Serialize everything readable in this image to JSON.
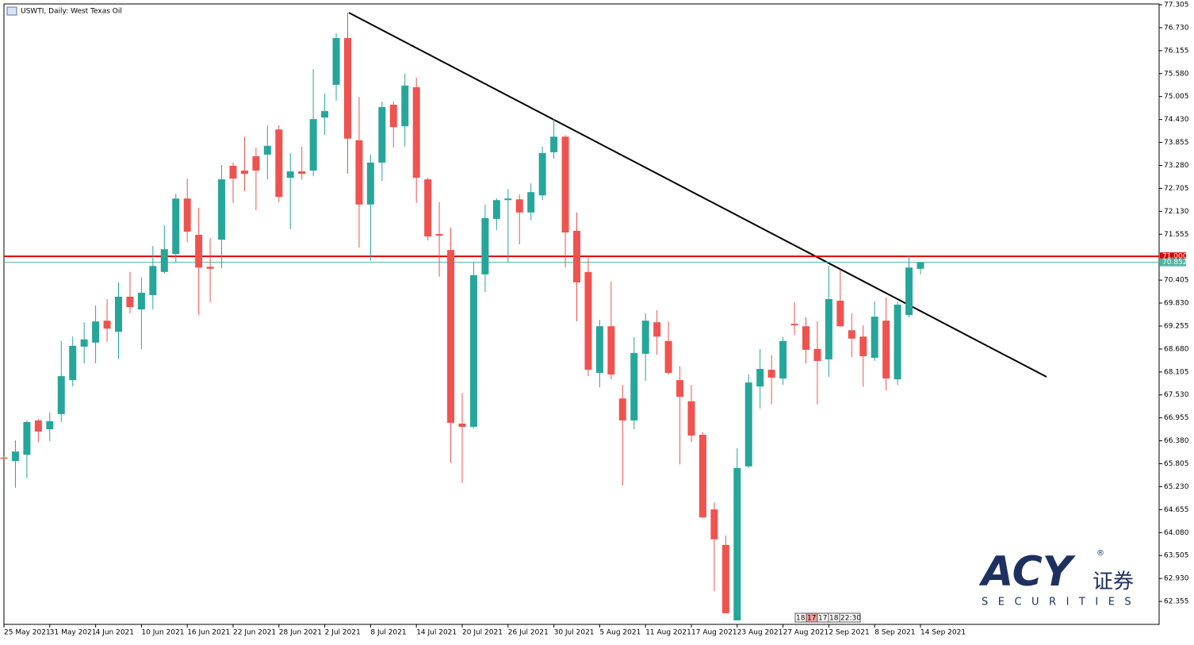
{
  "chart_data": {
    "type": "candlestick",
    "title": "USWTI, Daily:  West Texas Oil",
    "categories": [
      "25 May 2021",
      null,
      null,
      null,
      "31 May 2021",
      null,
      null,
      null,
      "4 Jun 2021",
      null,
      null,
      null,
      "10 Jun 2021",
      null,
      null,
      null,
      "16 Jun 2021",
      null,
      null,
      null,
      "22 Jun 2021",
      null,
      null,
      null,
      "28 Jun 2021",
      null,
      null,
      null,
      "2 Jul 2021",
      null,
      null,
      null,
      "8 Jul 2021",
      null,
      null,
      null,
      "14 Jul 2021",
      null,
      null,
      null,
      "20 Jul 2021",
      null,
      null,
      null,
      "26 Jul 2021",
      null,
      null,
      null,
      "30 Jul 2021",
      null,
      null,
      null,
      "5 Aug 2021",
      null,
      null,
      null,
      "11 Aug 2021",
      null,
      null,
      null,
      "17 Aug 2021",
      null,
      null,
      null,
      "23 Aug 2021",
      null,
      null,
      null,
      "27 Aug 2021",
      null,
      null,
      null,
      "2 Sep 2021",
      null,
      null,
      null,
      "8 Sep 2021",
      null,
      null,
      null,
      "14 Sep 2021"
    ],
    "open": [
      65.96,
      65.87,
      66.03,
      66.89,
      66.67,
      67.05,
      67.9,
      68.74,
      68.84,
      69.39,
      69.11,
      69.99,
      69.67,
      70.03,
      70.61,
      71.06,
      72.45,
      71.54,
      70.74,
      71.42,
      73.27,
      73.15,
      73.51,
      73.55,
      74.18,
      72.97,
      73.13,
      73.15,
      74.48,
      75.3,
      76.47,
      73.91,
      72.3,
      73.35,
      74.8,
      74.26,
      75.24,
      72.93,
      71.56,
      71.16,
      66.81,
      66.73,
      70.55,
      71.94,
      72.41,
      72.43,
      72.1,
      72.53,
      73.61,
      74.0,
      71.64,
      70.61,
      68.08,
      69.25,
      67.44,
      66.89,
      68.56,
      69.35,
      68.88,
      67.9,
      67.37,
      66.53,
      64.66,
      63.77,
      61.88,
      65.74,
      67.74,
      68.16,
      67.94,
      69.31,
      69.25,
      68.68,
      68.42,
      69.89,
      69.15,
      68.99,
      68.46,
      69.39,
      67.92,
      69.53,
      70.69
    ],
    "high": [
      65.98,
      66.39,
      66.89,
      66.93,
      67.09,
      68.88,
      68.99,
      69.35,
      69.77,
      69.93,
      70.35,
      70.61,
      70.47,
      71.26,
      71.78,
      72.57,
      72.95,
      72.22,
      71.46,
      73.29,
      73.35,
      74.0,
      73.73,
      74.28,
      74.28,
      73.59,
      73.75,
      75.69,
      75.08,
      76.59,
      77.11,
      75.0,
      73.55,
      74.88,
      74.88,
      75.58,
      75.48,
      72.97,
      72.36,
      71.72,
      67.58,
      70.86,
      72.3,
      72.45,
      72.69,
      72.55,
      72.83,
      73.75,
      74.44,
      74.04,
      72.1,
      70.96,
      69.41,
      70.37,
      67.78,
      68.98,
      69.57,
      69.65,
      69.37,
      68.24,
      67.78,
      66.59,
      64.84,
      64.01,
      66.19,
      68.04,
      68.68,
      68.52,
      68.98,
      69.85,
      69.47,
      69.37,
      70.76,
      70.67,
      69.57,
      69.27,
      69.87,
      69.97,
      69.87,
      71.02,
      70.86
    ],
    "low": [
      65.92,
      65.2,
      65.44,
      66.35,
      66.37,
      66.85,
      67.74,
      68.32,
      68.32,
      68.86,
      68.44,
      69.57,
      68.68,
      69.67,
      70.57,
      70.86,
      71.36,
      69.53,
      69.85,
      70.71,
      72.34,
      72.63,
      72.16,
      72.93,
      72.36,
      71.68,
      72.93,
      73.01,
      74.04,
      74.9,
      73.07,
      71.22,
      70.9,
      72.89,
      73.73,
      73.75,
      72.34,
      71.4,
      70.49,
      65.83,
      65.32,
      66.69,
      70.11,
      71.66,
      70.86,
      71.3,
      71.9,
      72.41,
      73.45,
      70.72,
      69.37,
      68.0,
      67.72,
      67.92,
      65.26,
      66.67,
      67.88,
      68.54,
      68.04,
      65.79,
      66.35,
      64.44,
      62.61,
      62.06,
      61.88,
      65.7,
      67.19,
      67.29,
      67.78,
      69.02,
      68.32,
      67.29,
      67.98,
      69.23,
      68.48,
      67.74,
      68.38,
      67.64,
      67.78,
      69.47,
      70.55
    ],
    "close": [
      65.94,
      66.11,
      66.85,
      66.61,
      66.87,
      68.0,
      68.76,
      68.92,
      69.37,
      69.19,
      69.99,
      69.73,
      70.09,
      70.76,
      71.18,
      72.45,
      71.62,
      70.72,
      70.69,
      72.93,
      72.95,
      73.07,
      73.15,
      73.77,
      72.49,
      73.13,
      73.07,
      74.44,
      74.64,
      76.47,
      73.95,
      72.3,
      73.35,
      74.74,
      74.24,
      75.28,
      72.97,
      71.5,
      71.52,
      66.83,
      66.73,
      70.53,
      71.96,
      72.41,
      72.45,
      72.1,
      72.61,
      73.59,
      74.0,
      71.6,
      70.35,
      68.16,
      69.25,
      68.04,
      66.89,
      68.58,
      69.39,
      68.99,
      68.08,
      67.48,
      66.51,
      64.46,
      63.91,
      62.06,
      65.7,
      67.84,
      68.18,
      67.96,
      68.88,
      69.27,
      68.66,
      68.38,
      69.93,
      69.25,
      68.94,
      68.5,
      69.49,
      67.94,
      69.79,
      70.72,
      70.85
    ],
    "up_color": "#26a69a",
    "down_color": "#ef5350",
    "ylim": [
      61.78,
      77.325
    ],
    "yticks": [
      77.305,
      {
        "value": 76.73,
        "label": "76.730"
      },
      76.155,
      {
        "value": 75.58,
        "label": "75.580"
      },
      75.005,
      {
        "value": 74.43,
        "label": "74.430"
      },
      73.855,
      {
        "value": 73.28,
        "label": "73.280"
      },
      72.705,
      {
        "value": 72.13,
        "label": "72.130"
      },
      71.555,
      70.405,
      {
        "value": 69.83,
        "label": "69.830"
      },
      69.255,
      {
        "value": 68.68,
        "label": "68.680"
      },
      68.105,
      {
        "value": 67.53,
        "label": "67.530"
      },
      66.955,
      {
        "value": 66.38,
        "label": "66.380"
      },
      65.805,
      {
        "value": 65.23,
        "label": "65.230"
      },
      64.655,
      {
        "value": 64.08,
        "label": "64.080"
      },
      63.505,
      {
        "value": 62.93,
        "label": "62.930"
      },
      62.355
    ],
    "price_lines": [
      {
        "value": 71,
        "label": "71.000",
        "color": "#e00000"
      },
      {
        "value": 70.852,
        "color": "#4fb3a3"
      }
    ]
  },
  "session_times": [
    "18:",
    "17:",
    "17:",
    "18:",
    "22:30"
  ],
  "logo": {
    "brand": "ACY",
    "mark": "®",
    "cn": "证券",
    "sub": "SECURITIES"
  }
}
